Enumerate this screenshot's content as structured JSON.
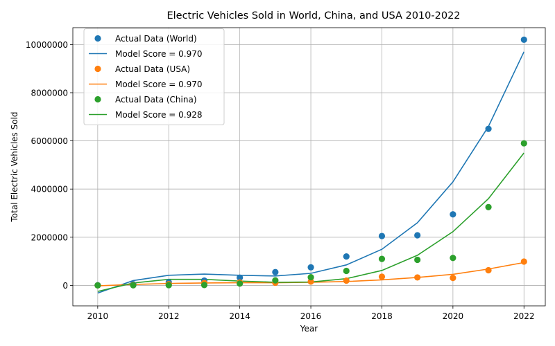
{
  "chart_data": {
    "type": "scatter",
    "title": "Electric Vehicles Sold in World, China, and USA 2010-2022",
    "xlabel": "Year",
    "ylabel": "Total Electric Vehicles Sold",
    "xlim": [
      2009.3,
      2022.6
    ],
    "ylim": [
      -850000,
      10700000
    ],
    "x_ticks": [
      2010,
      2012,
      2014,
      2016,
      2018,
      2020,
      2022
    ],
    "y_ticks": [
      0,
      2000000,
      4000000,
      6000000,
      8000000,
      10000000
    ],
    "grid": true,
    "legend_position": "top-left",
    "x": [
      2010,
      2011,
      2012,
      2013,
      2014,
      2015,
      2016,
      2017,
      2018,
      2019,
      2020,
      2021,
      2022
    ],
    "series": [
      {
        "name": "Actual Data (World)",
        "kind": "scatter",
        "color": "#1f77b4",
        "values": [
          10000,
          50000,
          130000,
          200000,
          320000,
          550000,
          750000,
          1200000,
          2050000,
          2080000,
          2950000,
          6500000,
          10200000
        ]
      },
      {
        "name": "Model Score = 0.970",
        "kind": "line",
        "color": "#1f77b4",
        "values": [
          -320000,
          200000,
          420000,
          470000,
          420000,
          390000,
          500000,
          850000,
          1500000,
          2600000,
          4300000,
          6600000,
          9700000
        ]
      },
      {
        "name": "Actual Data (USA)",
        "kind": "scatter",
        "color": "#ff7f0e",
        "values": [
          0,
          15000,
          50000,
          100000,
          120000,
          110000,
          160000,
          200000,
          360000,
          330000,
          310000,
          630000,
          990000
        ]
      },
      {
        "name": "Model Score = 0.970",
        "kind": "line",
        "color": "#ff7f0e",
        "values": [
          -20000,
          40000,
          80000,
          100000,
          110000,
          110000,
          130000,
          160000,
          230000,
          330000,
          460000,
          680000,
          950000
        ]
      },
      {
        "name": "Actual Data (China)",
        "kind": "scatter",
        "color": "#2ca02c",
        "values": [
          0,
          5000,
          10000,
          15000,
          75000,
          210000,
          340000,
          600000,
          1100000,
          1060000,
          1140000,
          3250000,
          5900000
        ]
      },
      {
        "name": "Model Score = 0.928",
        "kind": "line",
        "color": "#2ca02c",
        "values": [
          -250000,
          100000,
          250000,
          250000,
          180000,
          130000,
          140000,
          280000,
          620000,
          1250000,
          2230000,
          3600000,
          5500000
        ]
      }
    ]
  }
}
